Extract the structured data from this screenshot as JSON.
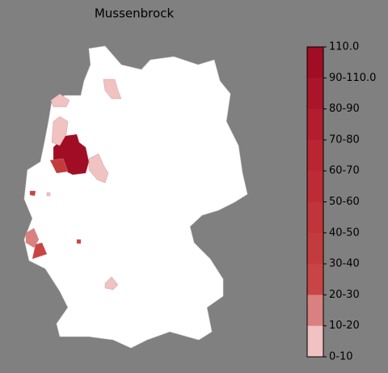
{
  "title": "Mussenbrock",
  "colorbar": {
    "labels": [
      "110.0",
      "90-110.0",
      "80-90",
      "70-80",
      "60-70",
      "50-60",
      "40-50",
      "30-40",
      "20-30",
      "10-20",
      "0-10"
    ],
    "colors": [
      "#a10d24",
      "#ab1529",
      "#b31d2d",
      "#b92531",
      "#bd2c35",
      "#c13439",
      "#c43b3d",
      "#c94444",
      "#da8080",
      "#f0c2c2",
      "#ffffff"
    ]
  }
}
